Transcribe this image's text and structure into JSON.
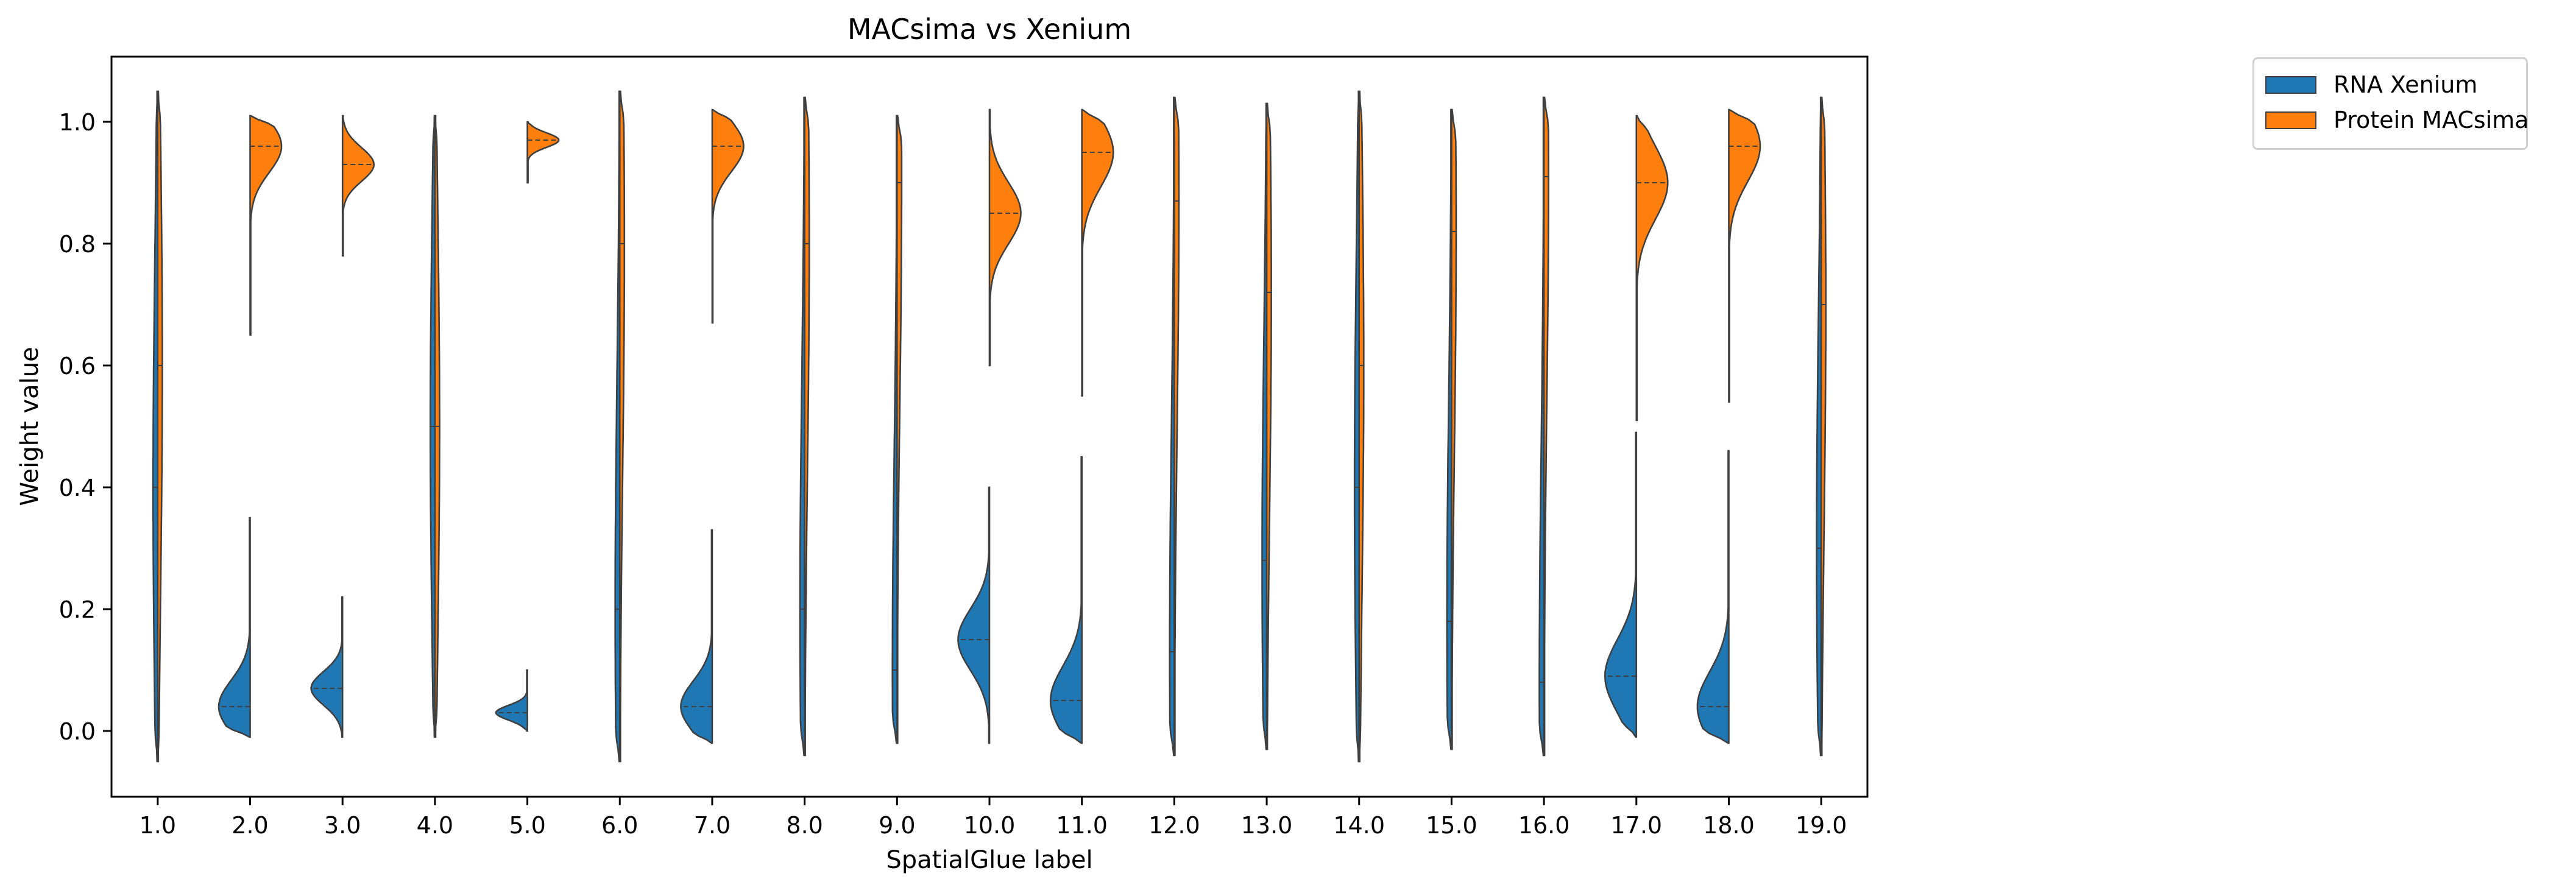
{
  "chart_data": {
    "type": "violin",
    "split": true,
    "inner": "quartile",
    "title": "MACsima vs Xenium",
    "xlabel": "SpatialGlue label",
    "ylabel": "Weight value",
    "categories": [
      "1.0",
      "2.0",
      "3.0",
      "4.0",
      "5.0",
      "6.0",
      "7.0",
      "8.0",
      "9.0",
      "10.0",
      "11.0",
      "12.0",
      "13.0",
      "14.0",
      "15.0",
      "16.0",
      "17.0",
      "18.0",
      "19.0"
    ],
    "ylim": [
      -0.1,
      1.1
    ],
    "yticks": [
      "0.0",
      "0.2",
      "0.4",
      "0.6",
      "0.8",
      "1.0"
    ],
    "legend_position": "outside upper right",
    "series": [
      {
        "name": "RNA Xenium",
        "color": "#1f77b4",
        "side": "left",
        "violins": [
          {
            "ymin": -0.05,
            "ymax": 1.05,
            "median": 0.4
          },
          {
            "ymin": -0.01,
            "ymax": 0.35,
            "median": 0.04
          },
          {
            "ymin": -0.01,
            "ymax": 0.22,
            "median": 0.07
          },
          {
            "ymin": -0.01,
            "ymax": 1.01,
            "median": 0.5
          },
          {
            "ymin": 0.0,
            "ymax": 0.1,
            "median": 0.03
          },
          {
            "ymin": -0.05,
            "ymax": 1.05,
            "median": 0.2
          },
          {
            "ymin": -0.02,
            "ymax": 0.33,
            "median": 0.04
          },
          {
            "ymin": -0.04,
            "ymax": 1.04,
            "median": 0.2
          },
          {
            "ymin": -0.02,
            "ymax": 1.01,
            "median": 0.1
          },
          {
            "ymin": -0.02,
            "ymax": 0.4,
            "median": 0.15
          },
          {
            "ymin": -0.02,
            "ymax": 0.45,
            "median": 0.05
          },
          {
            "ymin": -0.04,
            "ymax": 1.04,
            "median": 0.13
          },
          {
            "ymin": -0.03,
            "ymax": 1.03,
            "median": 0.28
          },
          {
            "ymin": -0.05,
            "ymax": 1.05,
            "median": 0.4
          },
          {
            "ymin": -0.03,
            "ymax": 1.02,
            "median": 0.18
          },
          {
            "ymin": -0.04,
            "ymax": 1.04,
            "median": 0.08
          },
          {
            "ymin": -0.01,
            "ymax": 0.49,
            "median": 0.09
          },
          {
            "ymin": -0.02,
            "ymax": 0.46,
            "median": 0.04
          },
          {
            "ymin": -0.04,
            "ymax": 1.04,
            "median": 0.3
          }
        ]
      },
      {
        "name": "Protein MACsima",
        "color": "#ff7f0e",
        "side": "right",
        "violins": [
          {
            "ymin": -0.05,
            "ymax": 1.05,
            "median": 0.6
          },
          {
            "ymin": 0.65,
            "ymax": 1.01,
            "median": 0.96
          },
          {
            "ymin": 0.78,
            "ymax": 1.01,
            "median": 0.93
          },
          {
            "ymin": -0.01,
            "ymax": 1.01,
            "median": 0.5
          },
          {
            "ymin": 0.9,
            "ymax": 1.0,
            "median": 0.97
          },
          {
            "ymin": -0.05,
            "ymax": 1.05,
            "median": 0.8
          },
          {
            "ymin": 0.67,
            "ymax": 1.02,
            "median": 0.96
          },
          {
            "ymin": -0.04,
            "ymax": 1.04,
            "median": 0.8
          },
          {
            "ymin": -0.02,
            "ymax": 1.01,
            "median": 0.9
          },
          {
            "ymin": 0.6,
            "ymax": 1.02,
            "median": 0.85
          },
          {
            "ymin": 0.55,
            "ymax": 1.02,
            "median": 0.95
          },
          {
            "ymin": -0.04,
            "ymax": 1.04,
            "median": 0.87
          },
          {
            "ymin": -0.03,
            "ymax": 1.03,
            "median": 0.72
          },
          {
            "ymin": -0.05,
            "ymax": 1.05,
            "median": 0.6
          },
          {
            "ymin": -0.03,
            "ymax": 1.02,
            "median": 0.82
          },
          {
            "ymin": -0.04,
            "ymax": 1.04,
            "median": 0.91
          },
          {
            "ymin": 0.51,
            "ymax": 1.01,
            "median": 0.9
          },
          {
            "ymin": 0.54,
            "ymax": 1.02,
            "median": 0.96
          },
          {
            "ymin": -0.04,
            "ymax": 1.04,
            "median": 0.7
          }
        ]
      }
    ]
  }
}
